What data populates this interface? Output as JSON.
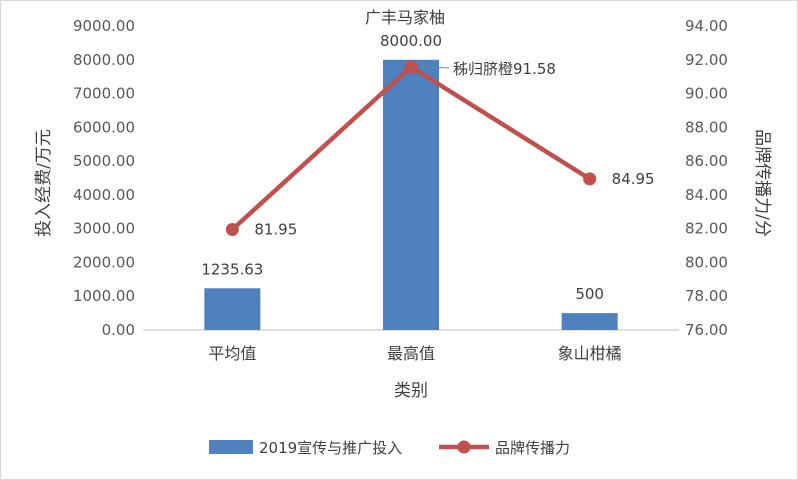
{
  "chart_data": {
    "type": "bar",
    "title": "广丰马家柚",
    "categories": [
      "平均值",
      "最高值",
      "象山柑橘"
    ],
    "xlabel": "类别",
    "ylabel": "投入经费/万元",
    "y2label": "品牌传播力/分",
    "ylim": [
      0,
      9000
    ],
    "y2lim": [
      76,
      94
    ],
    "y_ticks": [
      "0.00",
      "1000.00",
      "2000.00",
      "3000.00",
      "4000.00",
      "5000.00",
      "6000.00",
      "7000.00",
      "8000.00",
      "9000.00"
    ],
    "y2_ticks": [
      "76.00",
      "78.00",
      "80.00",
      "82.00",
      "84.00",
      "86.00",
      "88.00",
      "90.00",
      "92.00",
      "94.00"
    ],
    "grid": false,
    "legend_position": "bottom",
    "series": [
      {
        "name": "2019宣传与推广投入",
        "type": "bar",
        "axis": "left",
        "color": "#4e81bd",
        "values": [
          1235.63,
          8000.0,
          500
        ],
        "labels": [
          "1235.63",
          "8000.00",
          "500"
        ]
      },
      {
        "name": "品牌传播力",
        "type": "line",
        "axis": "right",
        "color": "#c0504d",
        "values": [
          81.95,
          91.58,
          84.95
        ],
        "labels": [
          "81.95",
          "秭归脐橙91.58",
          "84.95"
        ]
      }
    ]
  }
}
